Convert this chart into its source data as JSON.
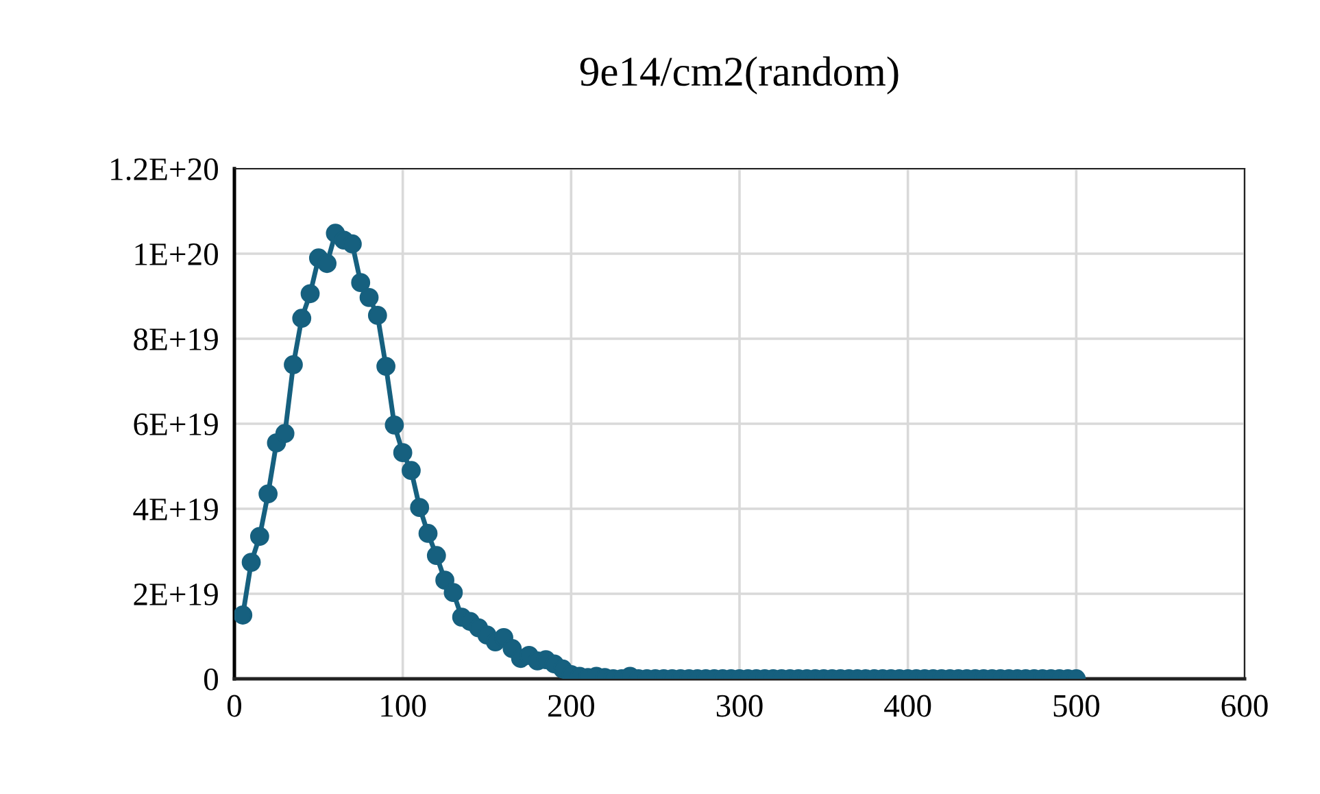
{
  "chart_data": {
    "type": "line",
    "title": "9e14/cm2(random)",
    "x": [
      5,
      10,
      15,
      20,
      25,
      30,
      35,
      40,
      45,
      50,
      55,
      60,
      65,
      70,
      75,
      80,
      85,
      90,
      95,
      100,
      105,
      110,
      115,
      120,
      125,
      130,
      135,
      140,
      145,
      150,
      155,
      160,
      165,
      170,
      175,
      180,
      185,
      190,
      195,
      200,
      205,
      210,
      215,
      220,
      225,
      230,
      235,
      240,
      245,
      250,
      255,
      260,
      265,
      270,
      275,
      280,
      285,
      290,
      295,
      300,
      305,
      310,
      315,
      320,
      325,
      330,
      335,
      340,
      345,
      350,
      355,
      360,
      365,
      370,
      375,
      380,
      385,
      390,
      395,
      400,
      405,
      410,
      415,
      420,
      425,
      430,
      435,
      440,
      445,
      450,
      455,
      460,
      465,
      470,
      475,
      480,
      485,
      490,
      495,
      500
    ],
    "series": [
      {
        "color": "#16607f",
        "values": [
          1.5e+19,
          2.74e+19,
          3.35e+19,
          4.35e+19,
          5.55e+19,
          5.77e+19,
          7.39e+19,
          8.48e+19,
          9.06e+19,
          9.9e+19,
          9.77e+19,
          1.048e+20,
          1.032e+20,
          1.023e+20,
          9.32e+19,
          8.97e+19,
          8.55e+19,
          7.35e+19,
          5.97e+19,
          5.32e+19,
          4.9e+19,
          4.03e+19,
          3.42e+19,
          2.9e+19,
          2.32e+19,
          2.03e+19,
          1.45e+19,
          1.35e+19,
          1.2e+19,
          1.03e+19,
          8.7e+18,
          9.7e+18,
          7.1e+18,
          4.8e+18,
          5.5e+18,
          4.2e+18,
          4.5e+18,
          3.5e+18,
          2.3e+18,
          1e+18,
          6e+17,
          3e+17,
          6e+17,
          3e+17,
          0,
          0,
          6e+17,
          0,
          0,
          0,
          0,
          0,
          0,
          0,
          0,
          0,
          0,
          0,
          0,
          0,
          0,
          0,
          0,
          0,
          0,
          0,
          0,
          0,
          0,
          0,
          0,
          0,
          0,
          0,
          0,
          0,
          0,
          0,
          0,
          0,
          0,
          0,
          0,
          0,
          0,
          0,
          0,
          0,
          0,
          0,
          0,
          0,
          0,
          0,
          0,
          0,
          0,
          0,
          0,
          0
        ]
      }
    ],
    "xlim": [
      0,
      600
    ],
    "xticks": [
      0,
      100,
      200,
      300,
      400,
      500,
      600
    ],
    "ylim": [
      0,
      1.2e+20
    ],
    "yticks": [
      {
        "value": 0,
        "label": "0"
      },
      {
        "value": 2e+19,
        "label": "2E+19"
      },
      {
        "value": 4e+19,
        "label": "4E+19"
      },
      {
        "value": 6e+19,
        "label": "6E+19"
      },
      {
        "value": 8e+19,
        "label": "8E+19"
      },
      {
        "value": 1e+20,
        "label": "1E+20"
      },
      {
        "value": 1.2e+20,
        "label": "1.2E+20"
      }
    ],
    "grid": true,
    "marker": "circle",
    "line_style": "solid",
    "legend": false
  }
}
